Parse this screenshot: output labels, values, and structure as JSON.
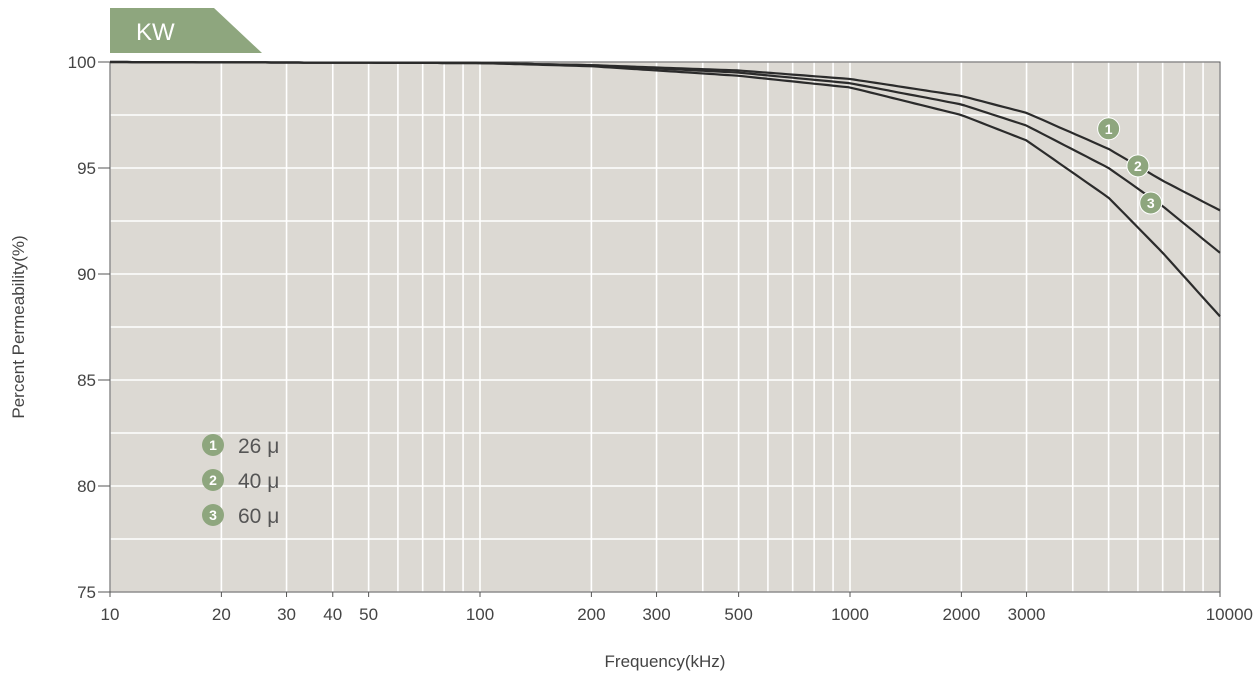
{
  "tag": {
    "label": "KW",
    "color": "#8ea67e"
  },
  "chart_data": {
    "type": "line",
    "title": "KW",
    "xlabel": "Frequency(kHz)",
    "ylabel": "Percent Permeability(%)",
    "x_scale": "log",
    "xlim": [
      10,
      10000
    ],
    "ylim": [
      75,
      100
    ],
    "grid": true,
    "legend_position": "bottom-left",
    "x_tick_labels": [
      {
        "value": 10,
        "label": "10"
      },
      {
        "value": 20,
        "label": "20"
      },
      {
        "value": 30,
        "label": "30"
      },
      {
        "value": 40,
        "label": "40"
      },
      {
        "value": 50,
        "label": "50"
      },
      {
        "value": 100,
        "label": "100"
      },
      {
        "value": 200,
        "label": "200"
      },
      {
        "value": 300,
        "label": "300"
      },
      {
        "value": 500,
        "label": "500"
      },
      {
        "value": 1000,
        "label": "1000"
      },
      {
        "value": 2000,
        "label": "2000"
      },
      {
        "value": 3000,
        "label": "3000"
      },
      {
        "value": 10000,
        "label": "10000"
      }
    ],
    "y_tick_labels": [
      {
        "value": 100,
        "label": "100"
      },
      {
        "value": 95,
        "label": "95"
      },
      {
        "value": 90,
        "label": "90"
      },
      {
        "value": 85,
        "label": "85"
      },
      {
        "value": 80,
        "label": "80"
      },
      {
        "value": 75,
        "label": "75"
      }
    ],
    "x_grid_values": [
      10,
      20,
      30,
      40,
      50,
      60,
      70,
      80,
      90,
      100,
      200,
      300,
      400,
      500,
      600,
      700,
      800,
      900,
      1000,
      2000,
      3000,
      4000,
      5000,
      6000,
      7000,
      8000,
      9000,
      10000
    ],
    "y_grid_values": [
      75,
      77.5,
      80,
      82.5,
      85,
      87.5,
      90,
      92.5,
      95,
      97.5,
      100
    ],
    "series": [
      {
        "id": "1",
        "name": "26 μ",
        "color": "#2b2b2b",
        "x": [
          10,
          100,
          200,
          500,
          1000,
          2000,
          3000,
          5000,
          7000,
          10000
        ],
        "y": [
          100,
          99.95,
          99.85,
          99.6,
          99.2,
          98.4,
          97.6,
          95.9,
          94.4,
          93.0
        ],
        "marker_at": [
          5000,
          96.85
        ]
      },
      {
        "id": "2",
        "name": "40 μ",
        "color": "#2b2b2b",
        "x": [
          10,
          100,
          200,
          500,
          1000,
          2000,
          3000,
          5000,
          7000,
          10000
        ],
        "y": [
          100,
          99.95,
          99.85,
          99.5,
          99.0,
          98.0,
          97.0,
          95.0,
          93.2,
          91.0
        ],
        "marker_at": [
          6000,
          95.1
        ]
      },
      {
        "id": "3",
        "name": "60 μ",
        "color": "#2b2b2b",
        "x": [
          10,
          100,
          200,
          500,
          1000,
          2000,
          3000,
          5000,
          7000,
          10000
        ],
        "y": [
          100,
          99.95,
          99.8,
          99.35,
          98.8,
          97.5,
          96.3,
          93.6,
          91.0,
          88.0
        ],
        "marker_at": [
          6500,
          93.35
        ]
      }
    ],
    "colors": {
      "plot_background": "#dcd9d3",
      "grid": "#ffffff",
      "marker": "#8ea67e",
      "line": "#2b2b2b"
    }
  }
}
